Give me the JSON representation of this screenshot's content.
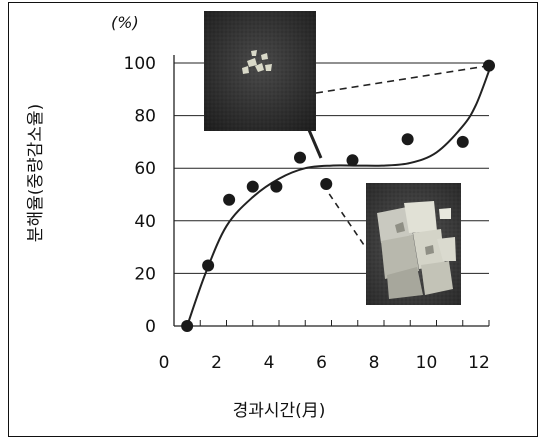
{
  "chart_data": {
    "type": "scatter",
    "unit_label": "(%)",
    "xlabel": "경과시간(月)",
    "ylabel": "분해율(중량감소율)",
    "xlim": [
      0,
      12
    ],
    "ylim": [
      0,
      100
    ],
    "x_ticks": [
      0,
      2,
      4,
      6,
      8,
      10,
      12
    ],
    "y_ticks": [
      0,
      20,
      40,
      60,
      80,
      100
    ],
    "grid": "horizontal",
    "points": [
      {
        "x": 0.5,
        "y": 0
      },
      {
        "x": 1.3,
        "y": 23
      },
      {
        "x": 2.1,
        "y": 48
      },
      {
        "x": 3.0,
        "y": 53
      },
      {
        "x": 3.9,
        "y": 53
      },
      {
        "x": 4.8,
        "y": 64
      },
      {
        "x": 5.8,
        "y": 54
      },
      {
        "x": 6.8,
        "y": 63
      },
      {
        "x": 8.9,
        "y": 71
      },
      {
        "x": 11.0,
        "y": 70
      },
      {
        "x": 12.0,
        "y": 99
      }
    ],
    "trend_line": [
      {
        "x": 0.5,
        "y": 0
      },
      {
        "x": 1.2,
        "y": 20
      },
      {
        "x": 2.0,
        "y": 38
      },
      {
        "x": 3.0,
        "y": 49
      },
      {
        "x": 4.0,
        "y": 56
      },
      {
        "x": 5.0,
        "y": 60
      },
      {
        "x": 6.0,
        "y": 61
      },
      {
        "x": 7.0,
        "y": 61
      },
      {
        "x": 8.0,
        "y": 61
      },
      {
        "x": 9.0,
        "y": 62
      },
      {
        "x": 10.0,
        "y": 66
      },
      {
        "x": 11.0,
        "y": 76
      },
      {
        "x": 11.5,
        "y": 84
      },
      {
        "x": 12.0,
        "y": 97
      }
    ],
    "inset_photos": [
      {
        "name": "photo-small-fragments",
        "point": {
          "x": 12.0,
          "y": 99
        },
        "connector": "dashed"
      },
      {
        "name": "photo-large-fragments",
        "point": {
          "x": 5.8,
          "y": 54
        },
        "connector": "dashed"
      }
    ]
  }
}
